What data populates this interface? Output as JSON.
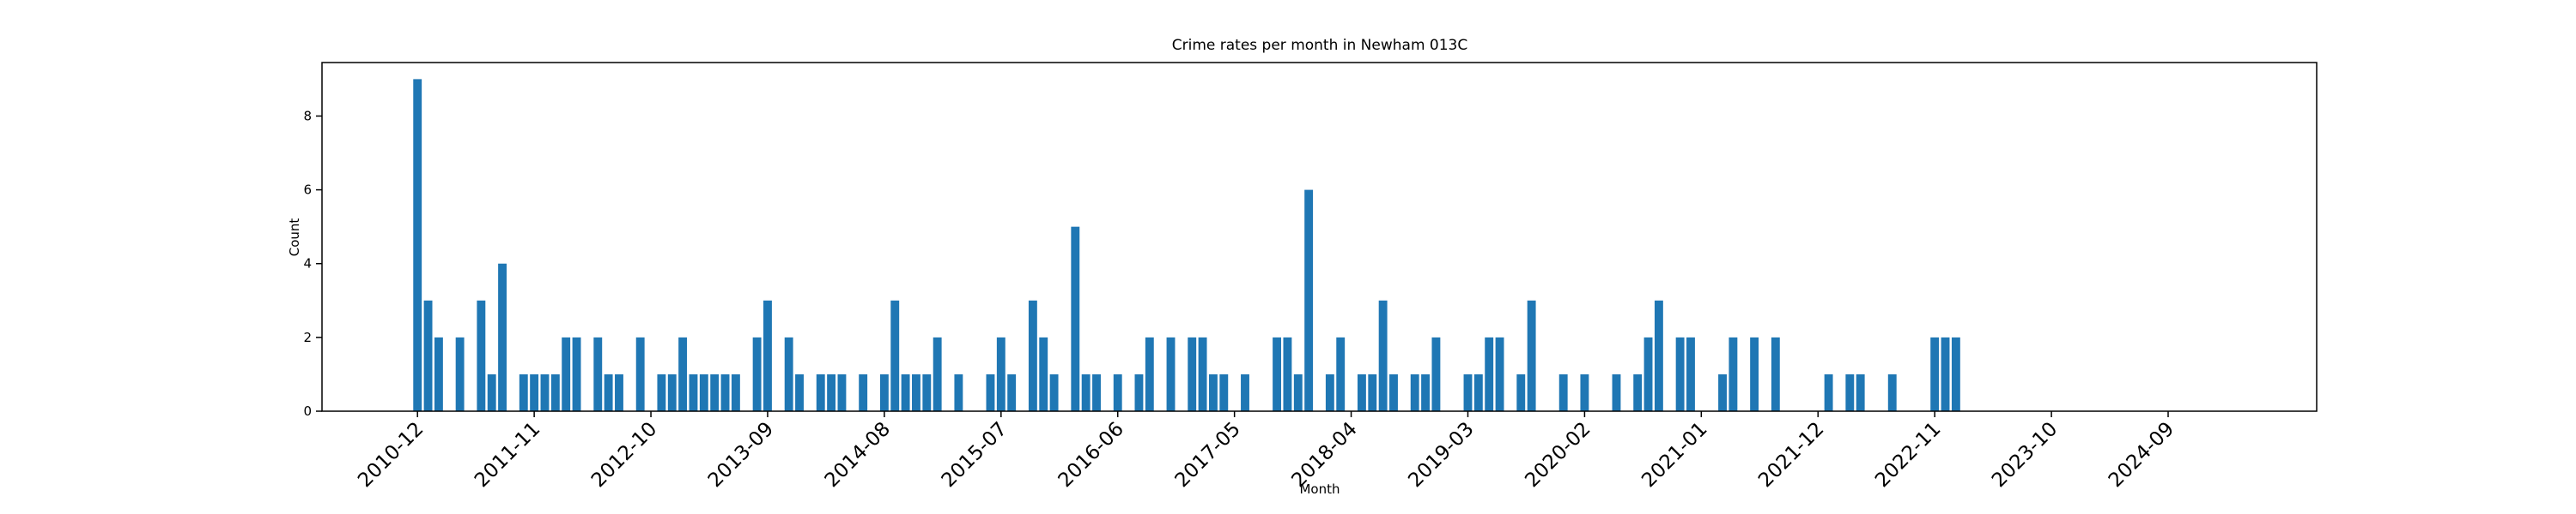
{
  "chart_data": {
    "type": "bar",
    "title": "Crime rates per month in Newham 013C",
    "xlabel": "Month",
    "ylabel": "Count",
    "color": "#1f77b4",
    "x": [
      "2010-12",
      "2011-01",
      "2011-02",
      "2011-04",
      "2011-06",
      "2011-07",
      "2011-08",
      "2011-10",
      "2011-11",
      "2011-12",
      "2012-01",
      "2012-02",
      "2012-03",
      "2012-05",
      "2012-06",
      "2012-07",
      "2012-09",
      "2012-11",
      "2012-12",
      "2013-01",
      "2013-02",
      "2013-03",
      "2013-04",
      "2013-05",
      "2013-06",
      "2013-08",
      "2013-09",
      "2013-11",
      "2013-12",
      "2014-02",
      "2014-03",
      "2014-04",
      "2014-06",
      "2014-08",
      "2014-09",
      "2014-10",
      "2014-11",
      "2014-12",
      "2015-01",
      "2015-03",
      "2015-06",
      "2015-07",
      "2015-08",
      "2015-10",
      "2015-11",
      "2015-12",
      "2016-02",
      "2016-03",
      "2016-04",
      "2016-06",
      "2016-08",
      "2016-09",
      "2016-11",
      "2017-01",
      "2017-02",
      "2017-03",
      "2017-04",
      "2017-06",
      "2017-09",
      "2017-10",
      "2017-11",
      "2017-12",
      "2018-02",
      "2018-03",
      "2018-05",
      "2018-06",
      "2018-07",
      "2018-08",
      "2018-10",
      "2018-11",
      "2018-12",
      "2019-03",
      "2019-04",
      "2019-05",
      "2019-06",
      "2019-08",
      "2019-09",
      "2019-12",
      "2020-02",
      "2020-05",
      "2020-07",
      "2020-08",
      "2020-09",
      "2020-11",
      "2020-12",
      "2021-03",
      "2021-04",
      "2021-06",
      "2021-08",
      "2022-01",
      "2022-03",
      "2022-04",
      "2022-07",
      "2022-11",
      "2022-12",
      "2023-01"
    ],
    "values": [
      9,
      3,
      2,
      2,
      3,
      1,
      4,
      1,
      1,
      1,
      1,
      2,
      2,
      2,
      1,
      1,
      2,
      1,
      1,
      2,
      1,
      1,
      1,
      1,
      1,
      2,
      3,
      2,
      1,
      1,
      1,
      1,
      1,
      1,
      3,
      1,
      1,
      1,
      2,
      1,
      1,
      2,
      1,
      3,
      2,
      1,
      5,
      1,
      1,
      1,
      1,
      2,
      2,
      2,
      2,
      1,
      1,
      1,
      2,
      2,
      1,
      6,
      1,
      2,
      1,
      1,
      3,
      1,
      1,
      1,
      2,
      1,
      1,
      2,
      2,
      1,
      3,
      1,
      1,
      1,
      1,
      2,
      3,
      2,
      2,
      1,
      2,
      2,
      2,
      1,
      1,
      1,
      1,
      2,
      2,
      2
    ],
    "xlim": [
      "2010-03",
      "2025-11"
    ],
    "xticks": [
      "2010-12",
      "2011-11",
      "2012-10",
      "2013-09",
      "2014-08",
      "2015-07",
      "2016-06",
      "2017-05",
      "2018-04",
      "2019-03",
      "2020-02",
      "2021-01",
      "2021-12",
      "2022-11",
      "2023-10",
      "2024-09"
    ],
    "ylim": [
      0,
      9.45
    ],
    "yticks": [
      0,
      2,
      4,
      6,
      8
    ]
  }
}
